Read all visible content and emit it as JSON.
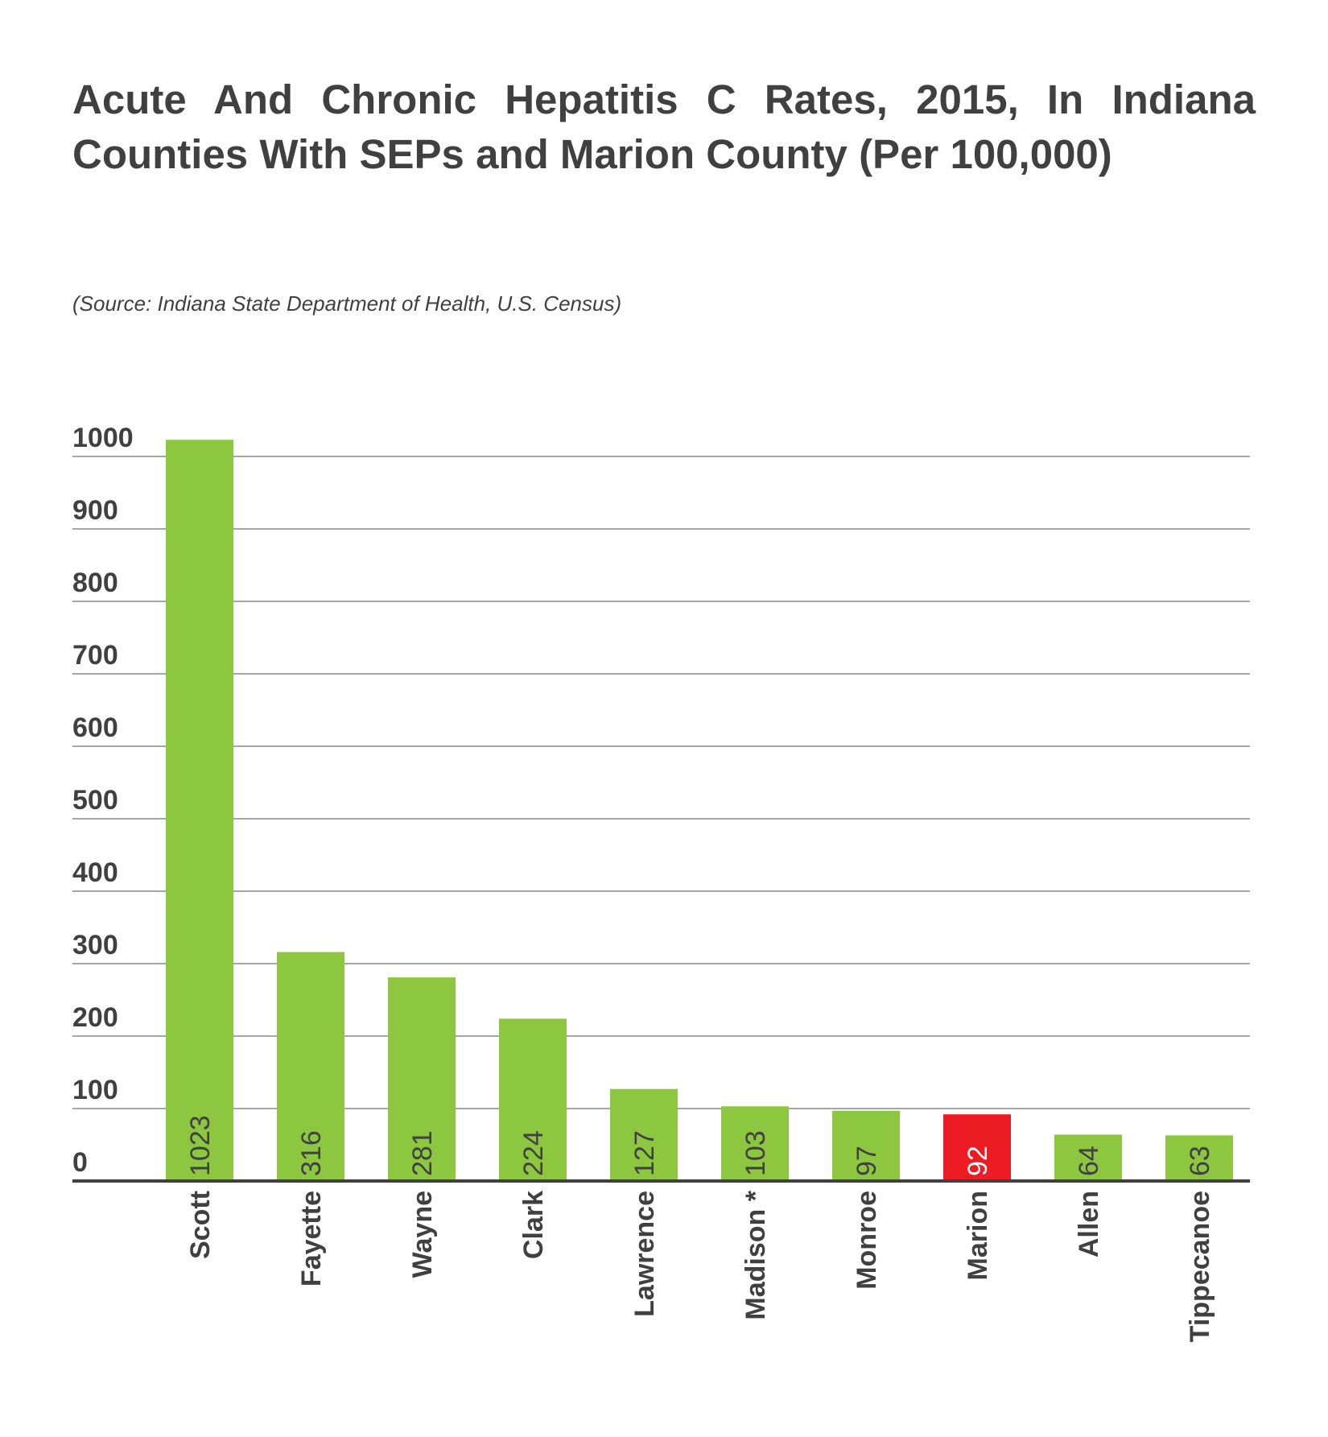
{
  "title": "Acute And Chronic Hepatitis C Rates, 2015, In Indiana Counties With SEPs and Marion County (Per 100,000)",
  "subtitle": "(Source: Indiana State Department of Health, U.S. Census)",
  "colors": {
    "bar": "#8dc63f",
    "highlight": "#ed1c24",
    "grid": "#a6a6a6",
    "axis": "#404040",
    "text": "#404040"
  },
  "chart_data": {
    "type": "bar",
    "title": "Acute And Chronic Hepatitis C Rates, 2015, In Indiana Counties With SEPs and Marion County (Per 100,000)",
    "categories": [
      "Scott",
      "Fayette",
      "Wayne",
      "Clark",
      "Lawrence",
      "Madison *",
      "Monroe",
      "Marion",
      "Allen",
      "Tippecanoe"
    ],
    "values": [
      1023,
      316,
      281,
      224,
      127,
      103,
      97,
      92,
      64,
      63
    ],
    "data_labels": [
      "1023",
      "316",
      "281",
      "224",
      "127",
      "103",
      "97",
      "92",
      "64",
      "63"
    ],
    "highlight": "Marion",
    "ylim": [
      0,
      1000
    ],
    "yticks": [
      0,
      100,
      200,
      300,
      400,
      500,
      600,
      700,
      800,
      900,
      1000
    ],
    "grid": true,
    "legend": "none"
  }
}
